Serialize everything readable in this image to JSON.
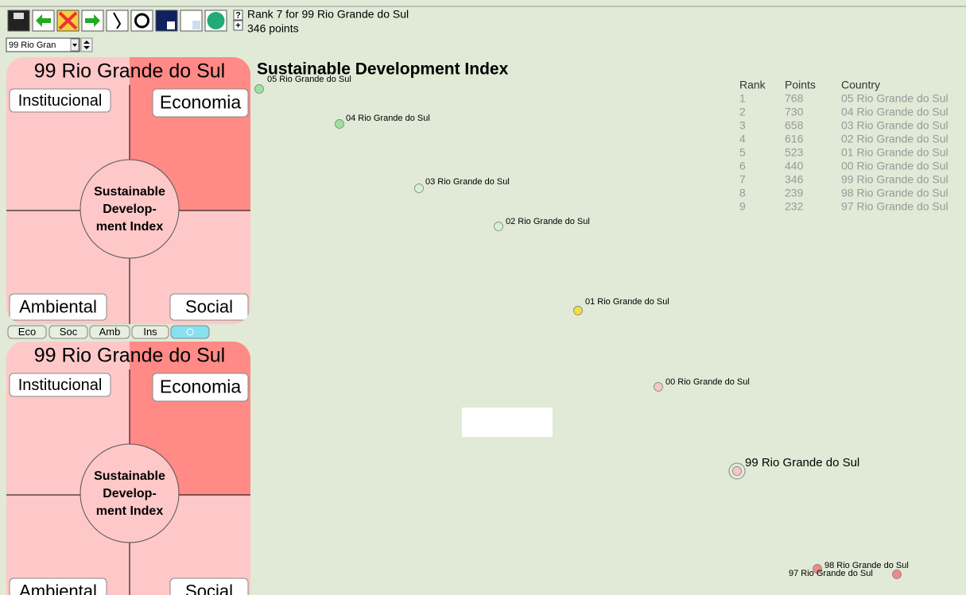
{
  "toolbar": {
    "help": "?",
    "plus": "+",
    "status_line1": "Rank 7 for 99 Rio Grande do Sul",
    "status_line2": "346 points"
  },
  "selector": {
    "value": "99 Rio Gran"
  },
  "panels": [
    {
      "title": "99 Rio Grande do Sul",
      "quadrants": [
        "Institucional",
        "Economia",
        "Ambiental",
        "Social"
      ],
      "center": [
        "Sustainable",
        "Develop-",
        "ment Index"
      ]
    },
    {
      "title": "99 Rio Grande do Sul",
      "quadrants": [
        "Institucional",
        "Economia",
        "Ambiental",
        "Social"
      ],
      "center": [
        "Sustainable",
        "Develop-",
        "ment Index"
      ]
    }
  ],
  "tabs": [
    "Eco",
    "Soc",
    "Amb",
    "Ins"
  ],
  "plot": {
    "title": "Sustainable Development Index",
    "points": [
      {
        "label": "05 Rio Grande do Sul",
        "color": "#9ee09e"
      },
      {
        "label": "04 Rio Grande do Sul",
        "color": "#9ee09e"
      },
      {
        "label": "03 Rio Grande do Sul",
        "color": "#d8f0d0"
      },
      {
        "label": "02 Rio Grande do Sul",
        "color": "#d8f0d0"
      },
      {
        "label": "01 Rio Grande do Sul",
        "color": "#f0e040"
      },
      {
        "label": "00 Rio Grande do Sul",
        "color": "#f4c8c8"
      },
      {
        "label": "99 Rio Grande do Sul",
        "color": "#f4c8c8"
      },
      {
        "label": "98 Rio Grande do Sul",
        "color": "#f08a8a"
      },
      {
        "label": "97 Rio Grande do Sul",
        "color": "#f08a8a"
      }
    ]
  },
  "ranking": {
    "headers": [
      "Rank",
      "Points",
      "Country"
    ],
    "rows": [
      [
        "1",
        "768",
        "05 Rio Grande do Sul"
      ],
      [
        "2",
        "730",
        "04 Rio Grande do Sul"
      ],
      [
        "3",
        "658",
        "03 Rio Grande do Sul"
      ],
      [
        "4",
        "616",
        "02 Rio Grande do Sul"
      ],
      [
        "5",
        "523",
        "01 Rio Grande do Sul"
      ],
      [
        "6",
        "440",
        "00 Rio Grande do Sul"
      ],
      [
        "7",
        "346",
        "99 Rio Grande do Sul"
      ],
      [
        "8",
        "239",
        "98 Rio Grande do Sul"
      ],
      [
        "9",
        "232",
        "97 Rio Grande do Sul"
      ]
    ]
  }
}
